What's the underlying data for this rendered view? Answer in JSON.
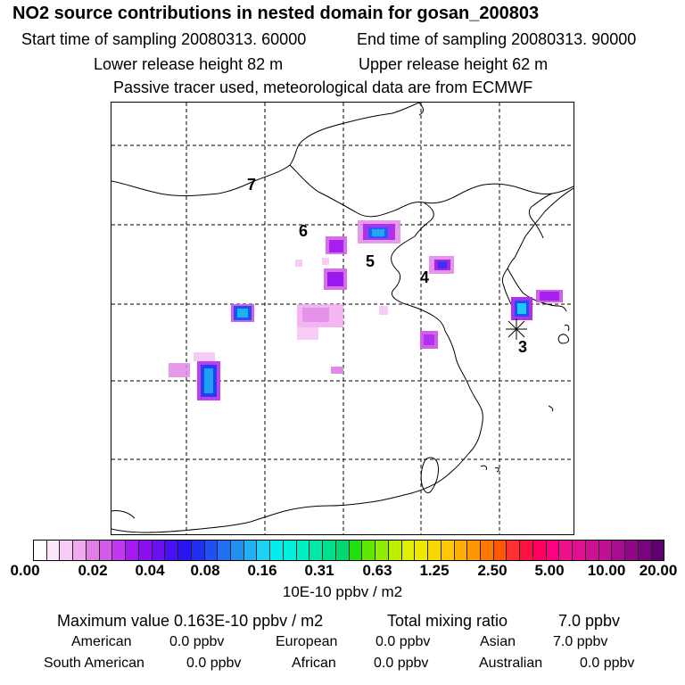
{
  "header": {
    "title": "NO2 source contributions in nested domain for gosan_200803",
    "start_label": "Start time of sampling 20080313. 60000",
    "end_label": "End time of sampling 20080313. 90000",
    "lower_label": "Lower release height   82 m",
    "upper_label": "Upper release height   62 m",
    "tracer_note": "Passive tracer used, meteorological data are from ECMWF"
  },
  "map": {
    "region_labels": [
      "7",
      "6",
      "5",
      "4",
      "3"
    ],
    "receptor": "Gosan station marker",
    "gridlines": "dashed"
  },
  "colorbar": {
    "ticks": [
      "0.00",
      "0.02",
      "0.04",
      "0.08",
      "0.16",
      "0.31",
      "0.63",
      "1.25",
      "2.50",
      "5.00",
      "10.00",
      "20.00"
    ],
    "unit": "10E-10 ppbv / m2",
    "colors": [
      "#ffffff",
      "#fbe6fb",
      "#f6ccf6",
      "#f0aaf0",
      "#e07ee6",
      "#d45ae8",
      "#c038f0",
      "#a818f4",
      "#8a10f0",
      "#6a10f2",
      "#4a10f4",
      "#2a14f2",
      "#2030f0",
      "#2050f2",
      "#2070f2",
      "#2090f4",
      "#20b0f4",
      "#20d0f4",
      "#00eeee",
      "#00f0dc",
      "#00eec4",
      "#00e8a8",
      "#00e08c",
      "#00d870",
      "#20e010",
      "#60e800",
      "#90ec00",
      "#bcee00",
      "#e0f000",
      "#f0e800",
      "#f8d800",
      "#ffc800",
      "#ffb000",
      "#ff9800",
      "#ff7800",
      "#ff5800",
      "#ff3030",
      "#ff1040",
      "#ff0060",
      "#ff0080",
      "#f0108a",
      "#e01090",
      "#d01094",
      "#c01094",
      "#a80c90",
      "#900888",
      "#780480",
      "#600070"
    ]
  },
  "footer": {
    "max_label": "Maximum value  0.163E-10 ppbv / m2",
    "total_label": "Total mixing ratio",
    "total_value": "7.0 ppbv",
    "sources": [
      {
        "name": "American",
        "value": "0.0 ppbv"
      },
      {
        "name": "European",
        "value": "0.0 ppbv"
      },
      {
        "name": "Asian",
        "value": "7.0 ppbv"
      },
      {
        "name": "South American",
        "value": "0.0 ppbv"
      },
      {
        "name": "African",
        "value": "0.0 ppbv"
      },
      {
        "name": "Australian",
        "value": "0.0 ppbv"
      }
    ]
  }
}
